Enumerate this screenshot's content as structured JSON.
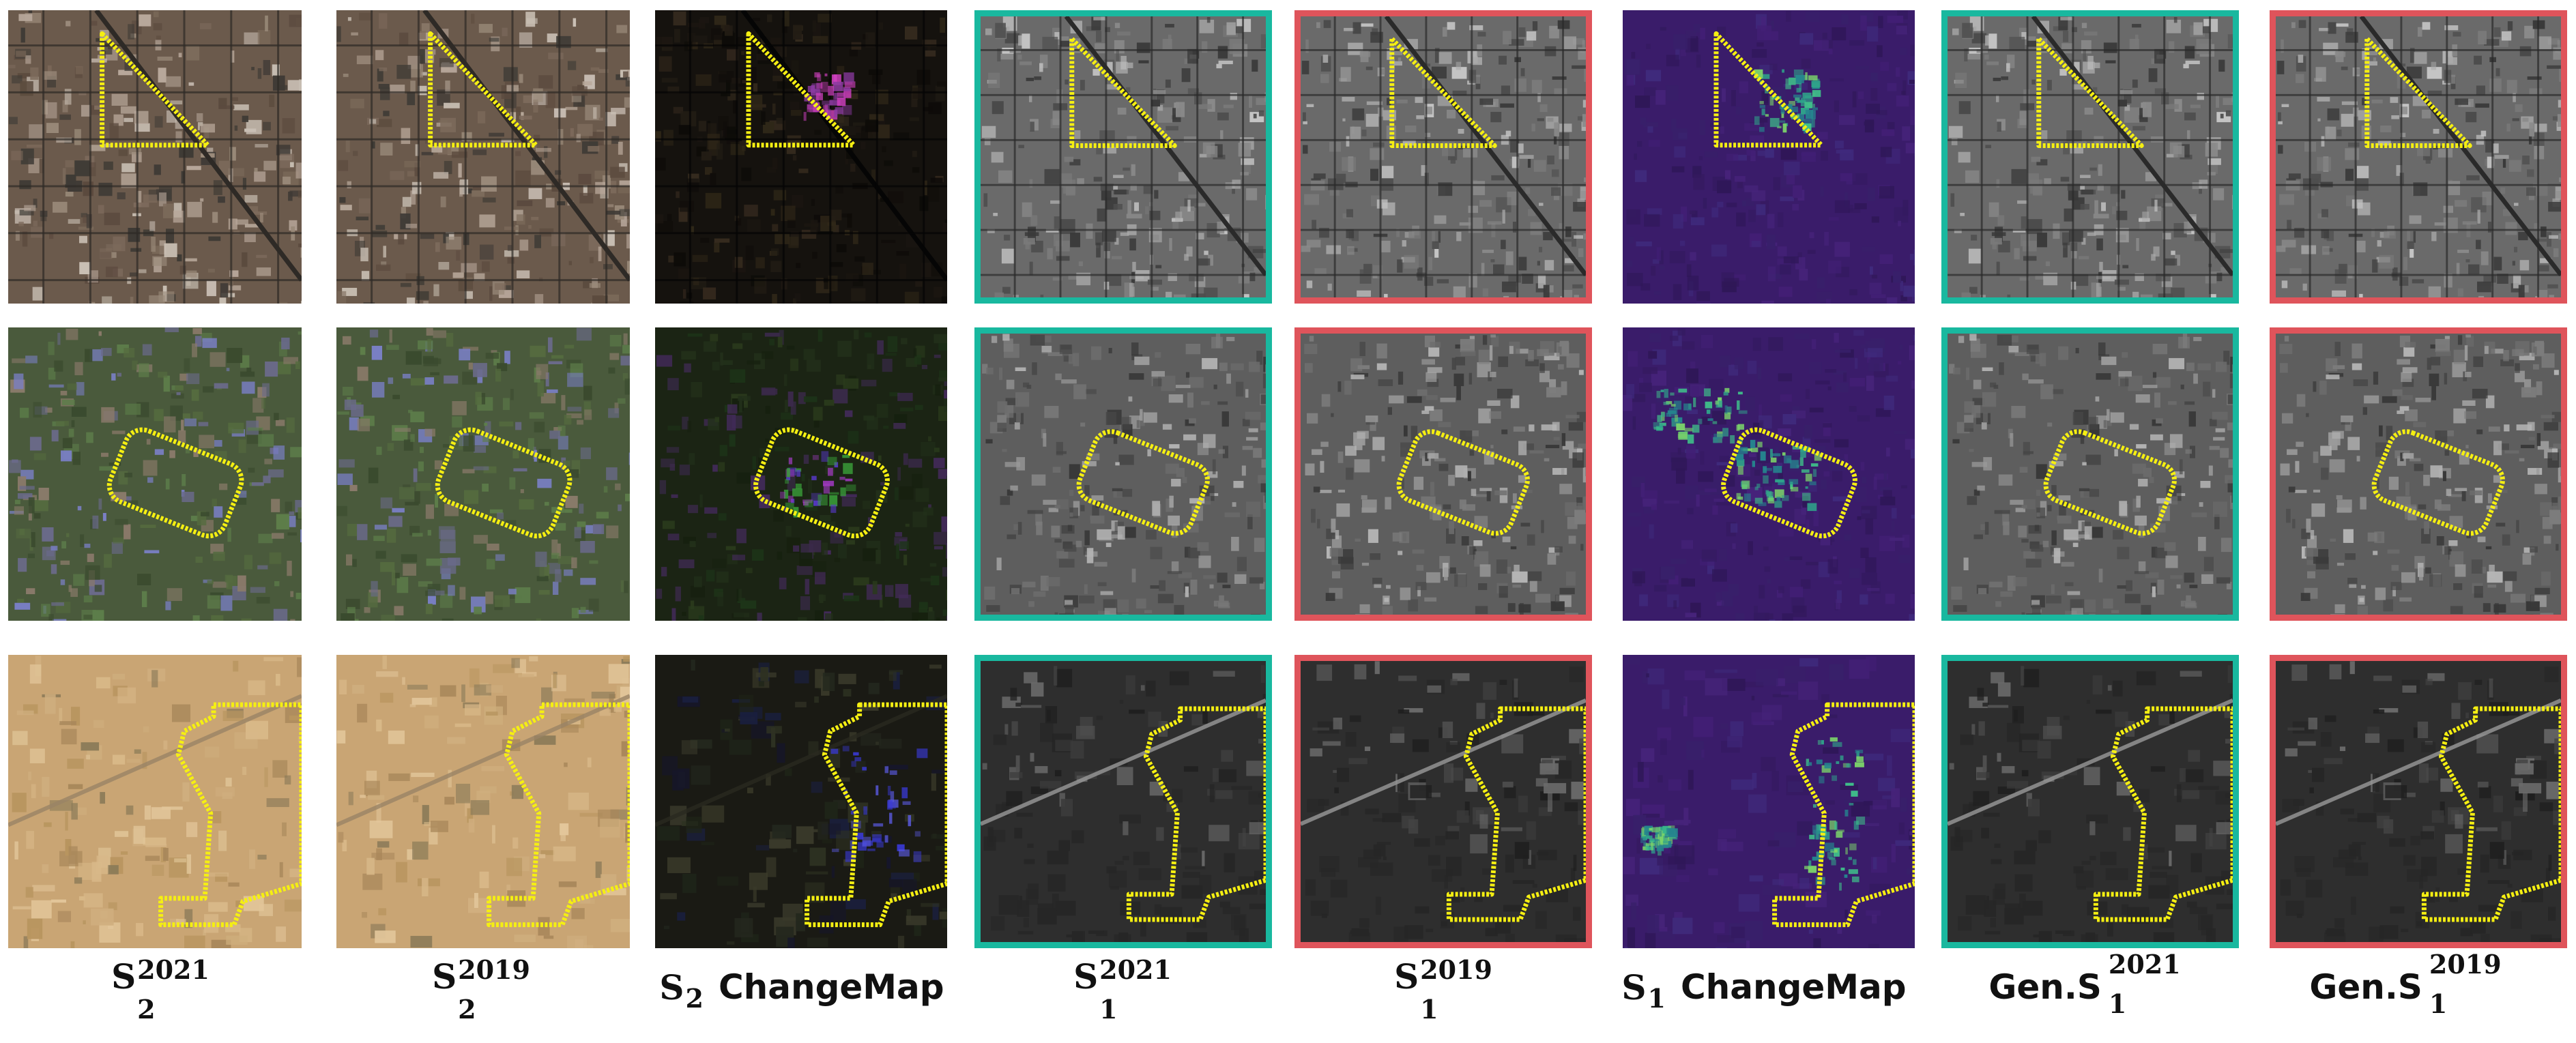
{
  "colors": {
    "frame_green": "#19b89f",
    "frame_red": "#df545b",
    "outline_yellow": "#f5ef12"
  },
  "captions": {
    "c1": {
      "base": "S",
      "sup": "2021",
      "sub": "2"
    },
    "c2": {
      "base": "S",
      "sup": "2019",
      "sub": "2"
    },
    "c3": {
      "base": "S",
      "sub": "2",
      "word": "ChangeMap"
    },
    "c4": {
      "base": "S",
      "sup": "2021",
      "sub": "1"
    },
    "c5": {
      "base": "S",
      "sup": "2019",
      "sub": "1"
    },
    "c6": {
      "base": "S",
      "sub": "1",
      "word": "ChangeMap"
    },
    "c7": {
      "prefix": "Gen.S",
      "sup": "2021",
      "sub": "1"
    },
    "c8": {
      "prefix": "Gen.S",
      "sup": "2019",
      "sub": "1"
    }
  }
}
